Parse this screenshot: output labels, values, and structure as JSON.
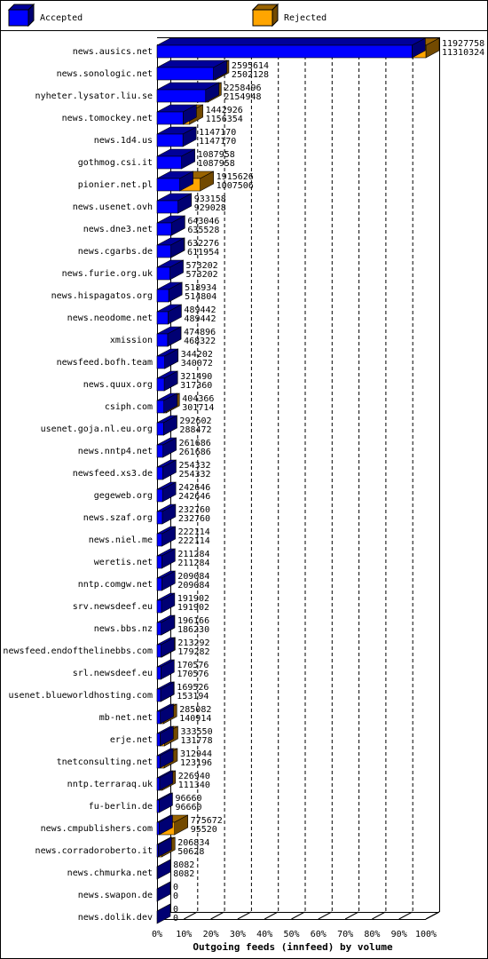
{
  "chart_data": {
    "type": "bar3d-stacked",
    "legend": [
      {
        "name": "Accepted",
        "color": "#0000ff"
      },
      {
        "name": "Rejected",
        "color": "#ffa500"
      }
    ],
    "xlabel": "Outgoing feeds (innfeed) by volume",
    "categories": [
      "news.ausics.net",
      "news.sonologic.net",
      "nyheter.lysator.liu.se",
      "news.tomockey.net",
      "news.1d4.us",
      "gothmog.csi.it",
      "pionier.net.pl",
      "news.usenet.ovh",
      "news.dne3.net",
      "news.cgarbs.de",
      "news.furie.org.uk",
      "news.hispagatos.org",
      "news.neodome.net",
      "xmission",
      "newsfeed.bofh.team",
      "news.quux.org",
      "csiph.com",
      "usenet.goja.nl.eu.org",
      "news.nntp4.net",
      "newsfeed.xs3.de",
      "gegeweb.org",
      "news.szaf.org",
      "news.niel.me",
      "weretis.net",
      "nntp.comgw.net",
      "srv.newsdeef.eu",
      "news.bbs.nz",
      "newsfeed.endofthelinebbs.com",
      "srl.newsdeef.eu",
      "usenet.blueworldhosting.com",
      "mb-net.net",
      "erje.net",
      "tnetconsulting.net",
      "nntp.terraraq.uk",
      "fu-berlin.de",
      "news.cmpublishers.com",
      "news.corradoroberto.it",
      "news.chmurka.net",
      "news.swapon.de",
      "news.dolik.dev"
    ],
    "offered": [
      11927758,
      2595614,
      2258496,
      1442926,
      1147170,
      1087958,
      1915626,
      933158,
      643046,
      632276,
      573202,
      518934,
      489442,
      474896,
      344202,
      321490,
      404366,
      292602,
      261686,
      254332,
      242646,
      232760,
      222114,
      211284,
      209084,
      191902,
      196166,
      213292,
      170576,
      169526,
      285082,
      333550,
      312944,
      226940,
      96660,
      775672,
      206834,
      8082,
      0,
      0
    ],
    "accepted": [
      11310324,
      2502128,
      2154948,
      1156354,
      1147170,
      1087958,
      1007506,
      929028,
      635528,
      611954,
      573202,
      514804,
      489442,
      468322,
      340072,
      317360,
      301714,
      288472,
      261686,
      254332,
      242646,
      232760,
      222114,
      211284,
      209084,
      191902,
      186230,
      179282,
      170576,
      153194,
      140914,
      131778,
      123196,
      111340,
      96660,
      95520,
      50628,
      8082,
      0,
      0
    ],
    "xlim": [
      0,
      100
    ],
    "xticks": [
      {
        "value": 0,
        "label": "0%"
      },
      {
        "value": 10,
        "label": "10%"
      },
      {
        "value": 20,
        "label": "20%"
      },
      {
        "value": 30,
        "label": "30%"
      },
      {
        "value": 40,
        "label": "40%"
      },
      {
        "value": 50,
        "label": "50%"
      },
      {
        "value": 60,
        "label": "60%"
      },
      {
        "value": 70,
        "label": "70%"
      },
      {
        "value": 80,
        "label": "80%"
      },
      {
        "value": 90,
        "label": "90%"
      },
      {
        "value": 100,
        "label": "100%"
      }
    ],
    "grid": true
  }
}
